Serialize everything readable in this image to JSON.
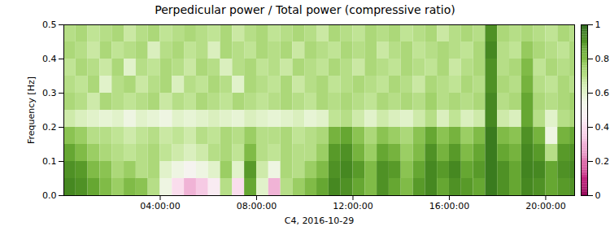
{
  "chart_data": {
    "type": "heatmap",
    "title": "Perpedicular power / Total power (compressive ratio)",
    "x_label": "C4, 2016-10-29",
    "y_label": "Frequency [Hz]",
    "x": [
      0,
      0.5,
      1,
      1.5,
      2,
      2.5,
      3,
      3.5,
      4,
      4.5,
      5,
      5.5,
      6,
      6.5,
      7,
      7.5,
      8,
      8.5,
      9,
      9.5,
      10,
      10.5,
      11,
      11.5,
      12,
      12.5,
      13,
      13.5,
      14,
      14.5,
      15,
      15.5,
      16,
      16.5,
      17,
      17.5,
      18,
      18.5,
      19,
      19.5,
      20,
      20.5,
      21
    ],
    "y": [
      0,
      0.05,
      0.1,
      0.15,
      0.2,
      0.25,
      0.3,
      0.35,
      0.4,
      0.45
    ],
    "values": [
      [
        0.92,
        0.9,
        0.85,
        0.8,
        0.75,
        0.8,
        0.78,
        0.7,
        0.55,
        0.4,
        0.3,
        0.35,
        0.45,
        0.7,
        0.4,
        0.85,
        0.6,
        0.3,
        0.7,
        0.75,
        0.8,
        0.85,
        0.92,
        0.9,
        0.85,
        0.8,
        0.9,
        0.85,
        0.8,
        0.88,
        0.92,
        0.85,
        0.9,
        0.88,
        0.85,
        0.95,
        0.9,
        0.85,
        0.92,
        0.9,
        0.85,
        0.88,
        0.9
      ],
      [
        0.9,
        0.88,
        0.8,
        0.78,
        0.72,
        0.75,
        0.7,
        0.72,
        0.6,
        0.55,
        0.5,
        0.55,
        0.6,
        0.75,
        0.6,
        0.88,
        0.65,
        0.55,
        0.72,
        0.7,
        0.75,
        0.8,
        0.9,
        0.92,
        0.88,
        0.8,
        0.9,
        0.88,
        0.78,
        0.85,
        0.92,
        0.88,
        0.92,
        0.85,
        0.88,
        0.95,
        0.9,
        0.85,
        0.93,
        0.92,
        0.85,
        0.9,
        0.92
      ],
      [
        0.85,
        0.8,
        0.75,
        0.72,
        0.7,
        0.68,
        0.7,
        0.72,
        0.68,
        0.65,
        0.62,
        0.65,
        0.7,
        0.72,
        0.68,
        0.8,
        0.7,
        0.68,
        0.72,
        0.7,
        0.7,
        0.75,
        0.88,
        0.9,
        0.82,
        0.75,
        0.85,
        0.82,
        0.75,
        0.8,
        0.9,
        0.82,
        0.88,
        0.8,
        0.85,
        0.95,
        0.85,
        0.82,
        0.92,
        0.88,
        0.7,
        0.88,
        0.9
      ],
      [
        0.78,
        0.75,
        0.7,
        0.7,
        0.68,
        0.65,
        0.68,
        0.7,
        0.66,
        0.68,
        0.65,
        0.7,
        0.68,
        0.72,
        0.7,
        0.75,
        0.7,
        0.7,
        0.72,
        0.68,
        0.7,
        0.72,
        0.82,
        0.85,
        0.78,
        0.72,
        0.78,
        0.75,
        0.72,
        0.78,
        0.85,
        0.78,
        0.82,
        0.75,
        0.8,
        0.95,
        0.8,
        0.78,
        0.9,
        0.82,
        0.55,
        0.82,
        0.85
      ],
      [
        0.65,
        0.62,
        0.6,
        0.58,
        0.6,
        0.55,
        0.6,
        0.58,
        0.55,
        0.6,
        0.58,
        0.6,
        0.62,
        0.6,
        0.58,
        0.62,
        0.6,
        0.58,
        0.6,
        0.62,
        0.58,
        0.6,
        0.68,
        0.7,
        0.65,
        0.6,
        0.65,
        0.62,
        0.6,
        0.65,
        0.7,
        0.62,
        0.68,
        0.62,
        0.65,
        0.92,
        0.65,
        0.62,
        0.85,
        0.7,
        0.6,
        0.7,
        0.72
      ],
      [
        0.72,
        0.7,
        0.65,
        0.72,
        0.7,
        0.68,
        0.7,
        0.72,
        0.66,
        0.7,
        0.68,
        0.72,
        0.7,
        0.68,
        0.72,
        0.7,
        0.68,
        0.7,
        0.72,
        0.7,
        0.68,
        0.72,
        0.7,
        0.72,
        0.7,
        0.68,
        0.72,
        0.7,
        0.72,
        0.7,
        0.74,
        0.7,
        0.72,
        0.7,
        0.72,
        0.92,
        0.7,
        0.72,
        0.85,
        0.72,
        0.7,
        0.72,
        0.74
      ],
      [
        0.7,
        0.68,
        0.72,
        0.6,
        0.7,
        0.72,
        0.66,
        0.7,
        0.72,
        0.62,
        0.7,
        0.68,
        0.72,
        0.7,
        0.6,
        0.72,
        0.7,
        0.68,
        0.72,
        0.66,
        0.7,
        0.72,
        0.68,
        0.7,
        0.72,
        0.7,
        0.68,
        0.72,
        0.7,
        0.66,
        0.72,
        0.7,
        0.68,
        0.72,
        0.7,
        0.9,
        0.72,
        0.7,
        0.82,
        0.7,
        0.68,
        0.72,
        0.7
      ],
      [
        0.68,
        0.72,
        0.7,
        0.66,
        0.72,
        0.6,
        0.7,
        0.68,
        0.72,
        0.7,
        0.66,
        0.72,
        0.7,
        0.62,
        0.7,
        0.72,
        0.68,
        0.7,
        0.66,
        0.72,
        0.7,
        0.68,
        0.72,
        0.7,
        0.66,
        0.72,
        0.7,
        0.68,
        0.72,
        0.7,
        0.68,
        0.72,
        0.66,
        0.7,
        0.72,
        0.9,
        0.7,
        0.72,
        0.8,
        0.68,
        0.72,
        0.7,
        0.72
      ],
      [
        0.72,
        0.7,
        0.66,
        0.72,
        0.68,
        0.7,
        0.72,
        0.62,
        0.7,
        0.72,
        0.68,
        0.7,
        0.62,
        0.72,
        0.7,
        0.68,
        0.72,
        0.7,
        0.72,
        0.66,
        0.72,
        0.7,
        0.68,
        0.72,
        0.7,
        0.72,
        0.66,
        0.7,
        0.72,
        0.68,
        0.7,
        0.72,
        0.7,
        0.68,
        0.72,
        0.92,
        0.7,
        0.68,
        0.76,
        0.72,
        0.7,
        0.68,
        0.72
      ],
      [
        0.7,
        0.72,
        0.68,
        0.7,
        0.72,
        0.66,
        0.7,
        0.72,
        0.68,
        0.7,
        0.72,
        0.7,
        0.68,
        0.72,
        0.66,
        0.7,
        0.72,
        0.68,
        0.7,
        0.72,
        0.7,
        0.66,
        0.72,
        0.7,
        0.68,
        0.72,
        0.7,
        0.72,
        0.68,
        0.7,
        0.72,
        0.66,
        0.7,
        0.72,
        0.7,
        0.9,
        0.72,
        0.7,
        0.72,
        0.7,
        0.68,
        0.72,
        0.7
      ]
    ],
    "xlim": [
      0,
      21.2
    ],
    "xticks": [
      {
        "value": 4,
        "label": "04:00:00"
      },
      {
        "value": 8,
        "label": "08:00:00"
      },
      {
        "value": 12,
        "label": "12:00:00"
      },
      {
        "value": 16,
        "label": "16:00:00"
      },
      {
        "value": 20,
        "label": "20:00:00"
      }
    ],
    "ylim": [
      0,
      0.5
    ],
    "yticks": [
      {
        "value": 0,
        "label": "0.0"
      },
      {
        "value": 0.1,
        "label": "0.1"
      },
      {
        "value": 0.2,
        "label": "0.2"
      },
      {
        "value": 0.3,
        "label": "0.3"
      },
      {
        "value": 0.4,
        "label": "0.4"
      },
      {
        "value": 0.5,
        "label": "0.5"
      }
    ],
    "color": "piyg",
    "colorbar": {
      "range": [
        0,
        1
      ],
      "ticks": [
        0,
        0.2,
        0.4,
        0.6,
        0.8,
        1
      ]
    }
  }
}
